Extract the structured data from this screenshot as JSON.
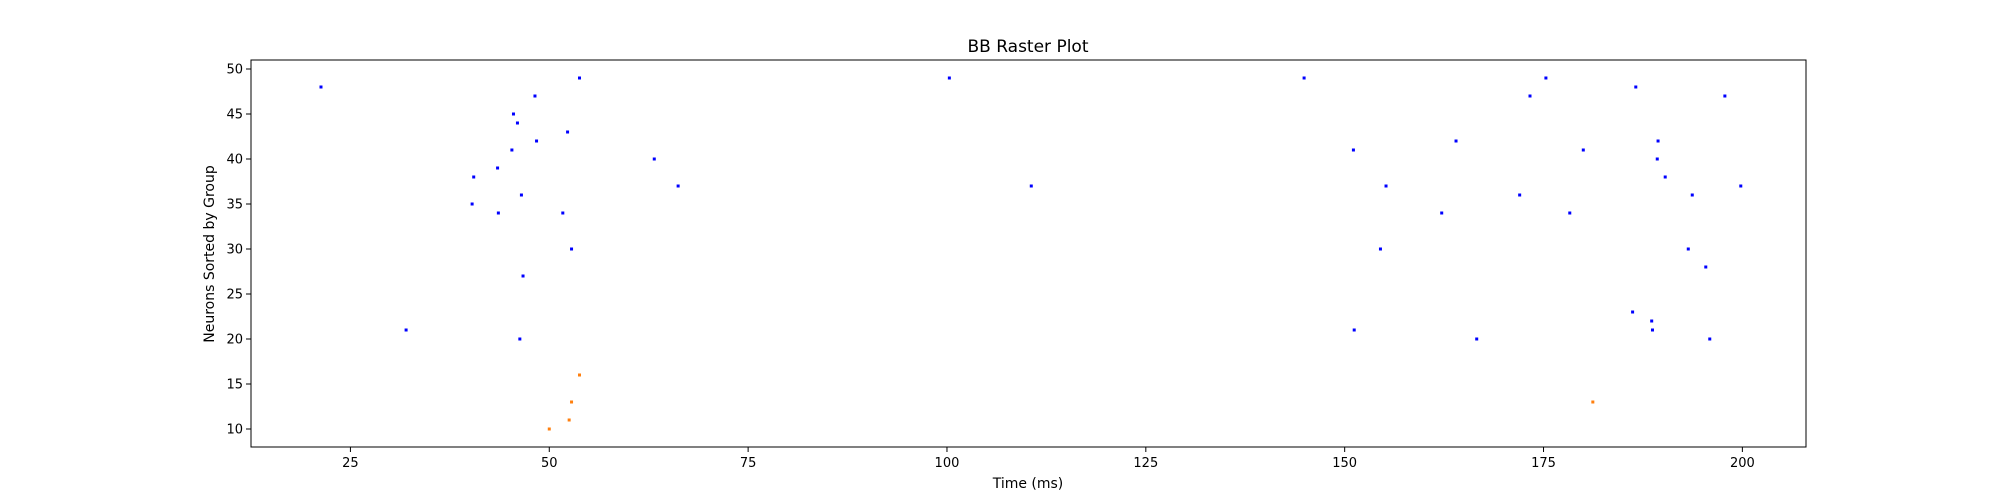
{
  "chart_data": {
    "type": "scatter",
    "title": "BB Raster Plot",
    "xlabel": "Time (ms)",
    "ylabel": "Neurons Sorted by Group",
    "xlim": [
      12.5,
      208
    ],
    "ylim": [
      8,
      51
    ],
    "xticks": [
      25,
      50,
      75,
      100,
      125,
      150,
      175,
      200
    ],
    "yticks": [
      10,
      15,
      20,
      25,
      30,
      35,
      40,
      45,
      50
    ],
    "grid": false,
    "legend": "none",
    "series": [
      {
        "color": "#0000ff",
        "x": [
          21.3,
          32,
          40.5,
          40.3,
          43.5,
          43.6,
          45.3,
          45.5,
          46.0,
          46.5,
          46.3,
          46.7,
          48.2,
          48.4,
          51.7,
          52.3,
          52.8,
          53.8,
          63.2,
          66.2,
          100.3,
          110.6,
          144.9,
          151.1,
          151.2,
          154.5,
          155.2,
          162.2,
          164.0,
          166.6,
          172.0,
          173.3,
          175.3,
          178.3,
          180.0,
          186.2,
          186.6,
          188.6,
          188.7,
          189.3,
          189.4,
          190.3,
          193.2,
          193.7,
          195.4,
          195.9,
          197.8,
          199.8
        ],
        "y": [
          48,
          21,
          38,
          35,
          39,
          34,
          41,
          45,
          44,
          36,
          20,
          27,
          47,
          42,
          34,
          43,
          30,
          49,
          40,
          37,
          49,
          37,
          49,
          41,
          21,
          30,
          37,
          34,
          42,
          20,
          36,
          47,
          49,
          34,
          41,
          23,
          48,
          22,
          21,
          40,
          42,
          38,
          30,
          36,
          28,
          20,
          47,
          37
        ]
      },
      {
        "color": "#ff7f0e",
        "x": [
          50.0,
          52.5,
          52.8,
          53.8,
          181.2
        ],
        "y": [
          10,
          11,
          13,
          16,
          13
        ]
      }
    ]
  }
}
